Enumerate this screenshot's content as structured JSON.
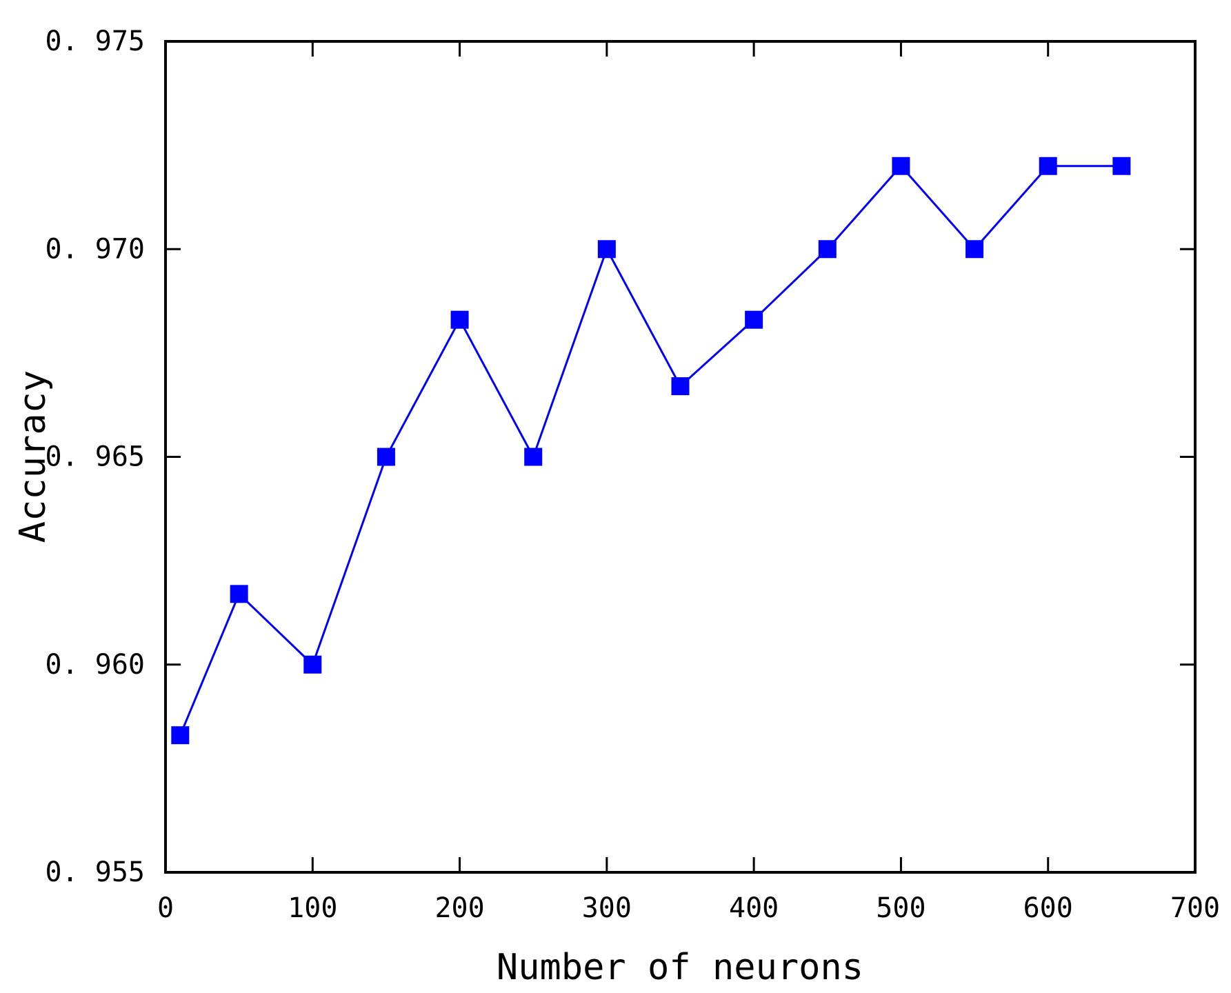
{
  "chart_data": {
    "type": "line",
    "title": "",
    "xlabel": "Number of neurons",
    "ylabel": "Accuracy",
    "xlim": [
      0,
      700
    ],
    "ylim": [
      0.955,
      0.975
    ],
    "xticks": [
      0,
      100,
      200,
      300,
      400,
      500,
      600,
      700
    ],
    "xtick_labels": [
      "0",
      "100",
      "200",
      "300",
      "400",
      "500",
      "600",
      "700"
    ],
    "yticks": [
      0.955,
      0.96,
      0.965,
      0.97,
      0.975
    ],
    "ytick_labels": [
      "0. 955",
      "0. 960",
      "0. 965",
      "0. 970",
      "0. 975"
    ],
    "grid": false,
    "legend": "none",
    "series": [
      {
        "color": "#0000ff",
        "marker": "square",
        "x": [
          10,
          50,
          100,
          150,
          200,
          250,
          300,
          350,
          400,
          450,
          500,
          550,
          600,
          650
        ],
        "y": [
          0.9583,
          0.9617,
          0.96,
          0.965,
          0.9683,
          0.965,
          0.97,
          0.9667,
          0.9683,
          0.97,
          0.972,
          0.97,
          0.972,
          0.972
        ]
      }
    ]
  }
}
